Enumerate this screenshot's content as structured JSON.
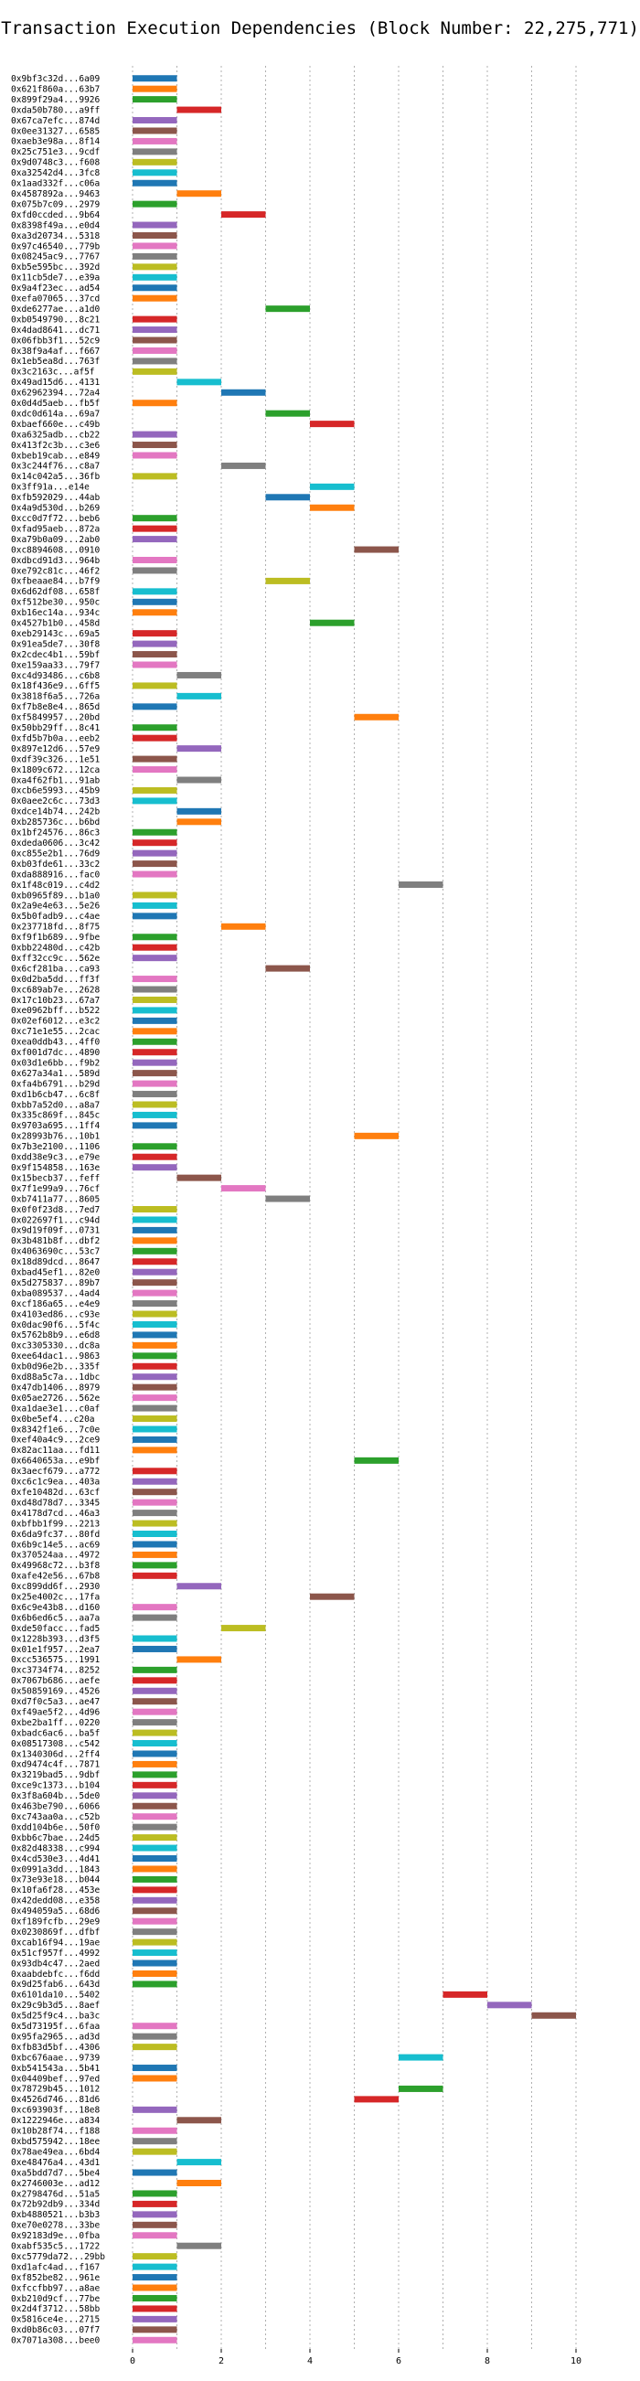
{
  "chart_data": {
    "type": "bar",
    "orientation": "horizontal",
    "title": "Transaction Execution Dependencies (Block Number: 22,275,771)",
    "xlabel": "",
    "ylabel": "",
    "xlim": [
      -0.9,
      10.5
    ],
    "xticks": [
      0,
      2,
      4,
      6,
      8,
      10
    ],
    "grid": true,
    "palette": [
      "#1f77b4",
      "#ff7f0e",
      "#2ca02c",
      "#d62728",
      "#9467bd",
      "#8c564b",
      "#e377c2",
      "#7f7f7f",
      "#bcbd22",
      "#17becf"
    ],
    "transactions": [
      {
        "tx": "0x9bf3c32d...6a09",
        "start": 0
      },
      {
        "tx": "0x621f860a...63b7",
        "start": 0
      },
      {
        "tx": "0x899f29a4...9926",
        "start": 0
      },
      {
        "tx": "0xda50b780...a9ff",
        "start": 1
      },
      {
        "tx": "0x67ca7efc...874d",
        "start": 0
      },
      {
        "tx": "0x0ee31327...6585",
        "start": 0
      },
      {
        "tx": "0xaeb3e98a...8f14",
        "start": 0
      },
      {
        "tx": "0x25c751e3...9cdf",
        "start": 0
      },
      {
        "tx": "0x9d0748c3...f608",
        "start": 0
      },
      {
        "tx": "0xa32542d4...3fc8",
        "start": 0
      },
      {
        "tx": "0x1aad332f...c06a",
        "start": 0
      },
      {
        "tx": "0x4587892a...9463",
        "start": 1
      },
      {
        "tx": "0x075b7c09...2979",
        "start": 0
      },
      {
        "tx": "0xfd0ccded...9b64",
        "start": 2
      },
      {
        "tx": "0x8398f49a...e0d4",
        "start": 0
      },
      {
        "tx": "0xa3d20734...5318",
        "start": 0
      },
      {
        "tx": "0x97c46540...779b",
        "start": 0
      },
      {
        "tx": "0x08245ac9...7767",
        "start": 0
      },
      {
        "tx": "0xb5e595bc...392d",
        "start": 0
      },
      {
        "tx": "0x11cb5de7...e39a",
        "start": 0
      },
      {
        "tx": "0x9a4f23ec...ad54",
        "start": 0
      },
      {
        "tx": "0xefa07065...37cd",
        "start": 0
      },
      {
        "tx": "0xde6277ae...a1d0",
        "start": 3
      },
      {
        "tx": "0xb0549790...8c21",
        "start": 0
      },
      {
        "tx": "0x4dad8641...dc71",
        "start": 0
      },
      {
        "tx": "0x06fbb3f1...52c9",
        "start": 0
      },
      {
        "tx": "0x38f9a4af...f667",
        "start": 0
      },
      {
        "tx": "0x1eb5ea8d...763f",
        "start": 0
      },
      {
        "tx": "0x3c2163c...af5f",
        "start": 0
      },
      {
        "tx": "0x49ad15d6...4131",
        "start": 1
      },
      {
        "tx": "0x62962394...72a4",
        "start": 2
      },
      {
        "tx": "0x0d4d5aeb...fb5f",
        "start": 0
      },
      {
        "tx": "0xdc0d614a...69a7",
        "start": 3
      },
      {
        "tx": "0xbaef660e...c49b",
        "start": 4
      },
      {
        "tx": "0xa6325adb...cb22",
        "start": 0
      },
      {
        "tx": "0x413f2c3b...c3e6",
        "start": 0
      },
      {
        "tx": "0xbeb19cab...e849",
        "start": 0
      },
      {
        "tx": "0x3c244f76...c8a7",
        "start": 2
      },
      {
        "tx": "0x14c042a5...36fb",
        "start": 0
      },
      {
        "tx": "0x3ff91a...e14e",
        "start": 4
      },
      {
        "tx": "0xfb592029...44ab",
        "start": 3
      },
      {
        "tx": "0x4a9d530d...b269",
        "start": 4
      },
      {
        "tx": "0xcc0d7f72...beb6",
        "start": 0
      },
      {
        "tx": "0xfad95aeb...872a",
        "start": 0
      },
      {
        "tx": "0xa79b0a09...2ab0",
        "start": 0
      },
      {
        "tx": "0xc8894608...0910",
        "start": 5
      },
      {
        "tx": "0xdbcd91d3...964b",
        "start": 0
      },
      {
        "tx": "0xe792c81c...46f2",
        "start": 0
      },
      {
        "tx": "0xfbeaae84...b7f9",
        "start": 3
      },
      {
        "tx": "0x6d62df08...658f",
        "start": 0
      },
      {
        "tx": "0xf512be30...950c",
        "start": 0
      },
      {
        "tx": "0xb16ec14a...934c",
        "start": 0
      },
      {
        "tx": "0x4527b1b0...458d",
        "start": 4
      },
      {
        "tx": "0xeb29143c...69a5",
        "start": 0
      },
      {
        "tx": "0x91ea5de7...30f8",
        "start": 0
      },
      {
        "tx": "0x2cdec4b1...59bf",
        "start": 0
      },
      {
        "tx": "0xe159aa33...79f7",
        "start": 0
      },
      {
        "tx": "0xc4d93486...c6b8",
        "start": 1
      },
      {
        "tx": "0x18f436e9...6ff5",
        "start": 0
      },
      {
        "tx": "0x3818f6a5...726a",
        "start": 1
      },
      {
        "tx": "0xf7b8e8e4...865d",
        "start": 0
      },
      {
        "tx": "0xf5849957...20bd",
        "start": 5
      },
      {
        "tx": "0x50bb29ff...8c41",
        "start": 0
      },
      {
        "tx": "0xfd5b7b0a...eeb2",
        "start": 0
      },
      {
        "tx": "0x897e12d6...57e9",
        "start": 1
      },
      {
        "tx": "0xdf39c326...1e51",
        "start": 0
      },
      {
        "tx": "0x1809c672...12ca",
        "start": 0
      },
      {
        "tx": "0xa4f62fb1...91ab",
        "start": 1
      },
      {
        "tx": "0xcb6e5993...45b9",
        "start": 0
      },
      {
        "tx": "0x0aee2c6c...73d3",
        "start": 0
      },
      {
        "tx": "0xdce14b74...242b",
        "start": 1
      },
      {
        "tx": "0xb285736c...b6bd",
        "start": 1
      },
      {
        "tx": "0x1bf24576...86c3",
        "start": 0
      },
      {
        "tx": "0xdeda0606...3c42",
        "start": 0
      },
      {
        "tx": "0xc855e2b1...76d9",
        "start": 0
      },
      {
        "tx": "0xb03fde61...33c2",
        "start": 0
      },
      {
        "tx": "0xda888916...fac0",
        "start": 0
      },
      {
        "tx": "0x1f48c019...c4d2",
        "start": 6
      },
      {
        "tx": "0xb0965f89...b1a0",
        "start": 0
      },
      {
        "tx": "0x2a9e4e63...5e26",
        "start": 0
      },
      {
        "tx": "0x5b0fadb9...c4ae",
        "start": 0
      },
      {
        "tx": "0x237718fd...8f75",
        "start": 2
      },
      {
        "tx": "0xf9f1b689...9fbe",
        "start": 0
      },
      {
        "tx": "0xbb22480d...c42b",
        "start": 0
      },
      {
        "tx": "0xff32cc9c...562e",
        "start": 0
      },
      {
        "tx": "0x6cf281ba...ca93",
        "start": 3
      },
      {
        "tx": "0x0d2ba5dd...ff3f",
        "start": 0
      },
      {
        "tx": "0xc689ab7e...2628",
        "start": 0
      },
      {
        "tx": "0x17c10b23...67a7",
        "start": 0
      },
      {
        "tx": "0xe0962bff...b522",
        "start": 0
      },
      {
        "tx": "0x02ef6012...e3c2",
        "start": 0
      },
      {
        "tx": "0xc71e1e55...2cac",
        "start": 0
      },
      {
        "tx": "0xea0ddb43...4ff0",
        "start": 0
      },
      {
        "tx": "0xf001d7dc...4890",
        "start": 0
      },
      {
        "tx": "0x03d1e6bb...f9b2",
        "start": 0
      },
      {
        "tx": "0x627a34a1...589d",
        "start": 0
      },
      {
        "tx": "0xfa4b6791...b29d",
        "start": 0
      },
      {
        "tx": "0xd1b6cb47...6c8f",
        "start": 0
      },
      {
        "tx": "0xbb7a52d0...a8a7",
        "start": 0
      },
      {
        "tx": "0x335c869f...845c",
        "start": 0
      },
      {
        "tx": "0x9703a695...1ff4",
        "start": 0
      },
      {
        "tx": "0x28993b76...10b1",
        "start": 5
      },
      {
        "tx": "0x7b3e2100...1106",
        "start": 0
      },
      {
        "tx": "0xdd38e9c3...e79e",
        "start": 0
      },
      {
        "tx": "0x9f154858...163e",
        "start": 0
      },
      {
        "tx": "0x15becb37...feff",
        "start": 1
      },
      {
        "tx": "0x7f1e99a9...76cf",
        "start": 2
      },
      {
        "tx": "0xb7411a77...8605",
        "start": 3
      },
      {
        "tx": "0x0f0f23d8...7ed7",
        "start": 0
      },
      {
        "tx": "0x022697f1...c94d",
        "start": 0
      },
      {
        "tx": "0x9d19f09f...0731",
        "start": 0
      },
      {
        "tx": "0x3b481b8f...dbf2",
        "start": 0
      },
      {
        "tx": "0x4063690c...53c7",
        "start": 0
      },
      {
        "tx": "0x18d89dcd...8647",
        "start": 0
      },
      {
        "tx": "0xbad45ef1...82e0",
        "start": 0
      },
      {
        "tx": "0x5d275837...89b7",
        "start": 0
      },
      {
        "tx": "0xba089537...4ad4",
        "start": 0
      },
      {
        "tx": "0xcf186a65...e4e9",
        "start": 0
      },
      {
        "tx": "0x4103ed86...c93e",
        "start": 0
      },
      {
        "tx": "0x0dac90f6...5f4c",
        "start": 0
      },
      {
        "tx": "0x5762b8b9...e6d8",
        "start": 0
      },
      {
        "tx": "0xc3305330...dc8a",
        "start": 0
      },
      {
        "tx": "0xee64dac1...9863",
        "start": 0
      },
      {
        "tx": "0xb0d96e2b...335f",
        "start": 0
      },
      {
        "tx": "0xd88a5c7a...1dbc",
        "start": 0
      },
      {
        "tx": "0x47db1406...8979",
        "start": 0
      },
      {
        "tx": "0x05ae2726...562e",
        "start": 0
      },
      {
        "tx": "0xa1dae3e1...c0af",
        "start": 0
      },
      {
        "tx": "0x0be5ef4...c20a",
        "start": 0
      },
      {
        "tx": "0x8342f1e6...7c0e",
        "start": 0
      },
      {
        "tx": "0xef40a4c9...2ce9",
        "start": 0
      },
      {
        "tx": "0x82ac11aa...fd11",
        "start": 0
      },
      {
        "tx": "0x6640653a...e9bf",
        "start": 5
      },
      {
        "tx": "0x3aecf679...a772",
        "start": 0
      },
      {
        "tx": "0xc6c1c9ea...403a",
        "start": 0
      },
      {
        "tx": "0xfe10482d...63cf",
        "start": 0
      },
      {
        "tx": "0xd48d78d7...3345",
        "start": 0
      },
      {
        "tx": "0x4178d7cd...46a3",
        "start": 0
      },
      {
        "tx": "0xbfbb1f99...2213",
        "start": 0
      },
      {
        "tx": "0x6da9fc37...80fd",
        "start": 0
      },
      {
        "tx": "0x6b9c14e5...ac69",
        "start": 0
      },
      {
        "tx": "0x370524aa...4972",
        "start": 0
      },
      {
        "tx": "0x49968c72...b3f8",
        "start": 0
      },
      {
        "tx": "0xafe42e56...67b8",
        "start": 0
      },
      {
        "tx": "0xc899dd6f...2930",
        "start": 1
      },
      {
        "tx": "0x25e4002c...17fa",
        "start": 4
      },
      {
        "tx": "0x6c9e43b8...d160",
        "start": 0
      },
      {
        "tx": "0x6b6ed6c5...aa7a",
        "start": 0
      },
      {
        "tx": "0xde50facc...fad5",
        "start": 2
      },
      {
        "tx": "0x1228b393...d3f5",
        "start": 0
      },
      {
        "tx": "0x01e1f957...2ea7",
        "start": 0
      },
      {
        "tx": "0xcc536575...1991",
        "start": 1
      },
      {
        "tx": "0xc3734f74...8252",
        "start": 0
      },
      {
        "tx": "0x7067b686...aefe",
        "start": 0
      },
      {
        "tx": "0x50859169...4526",
        "start": 0
      },
      {
        "tx": "0xd7f0c5a3...ae47",
        "start": 0
      },
      {
        "tx": "0xf49ae5f2...4d96",
        "start": 0
      },
      {
        "tx": "0xbe2ba1ff...0220",
        "start": 0
      },
      {
        "tx": "0xbadc6ac6...ba5f",
        "start": 0
      },
      {
        "tx": "0x08517308...c542",
        "start": 0
      },
      {
        "tx": "0x1340306d...2ff4",
        "start": 0
      },
      {
        "tx": "0xd9474c4f...7871",
        "start": 0
      },
      {
        "tx": "0x3219bad5...9dbf",
        "start": 0
      },
      {
        "tx": "0xce9c1373...b104",
        "start": 0
      },
      {
        "tx": "0x3f8a604b...5de0",
        "start": 0
      },
      {
        "tx": "0x463be790...6066",
        "start": 0
      },
      {
        "tx": "0xc743aa0a...c52b",
        "start": 0
      },
      {
        "tx": "0xdd104b6e...50f0",
        "start": 0
      },
      {
        "tx": "0xbb6c7bae...24d5",
        "start": 0
      },
      {
        "tx": "0x82d48338...c994",
        "start": 0
      },
      {
        "tx": "0x4cd530e3...4d41",
        "start": 0
      },
      {
        "tx": "0x0991a3dd...1843",
        "start": 0
      },
      {
        "tx": "0x73e93e18...b044",
        "start": 0
      },
      {
        "tx": "0x10fa6f28...453e",
        "start": 0
      },
      {
        "tx": "0x42dedd08...e358",
        "start": 0
      },
      {
        "tx": "0x494059a5...68d6",
        "start": 0
      },
      {
        "tx": "0xf189fcfb...29e9",
        "start": 0
      },
      {
        "tx": "0x0230869f...dfbf",
        "start": 0
      },
      {
        "tx": "0xcab16f94...19ae",
        "start": 0
      },
      {
        "tx": "0x51cf957f...4992",
        "start": 0
      },
      {
        "tx": "0x93db4c47...2aed",
        "start": 0
      },
      {
        "tx": "0xaabdebfc...f6dd",
        "start": 0
      },
      {
        "tx": "0x9d25fab6...643d",
        "start": 0
      },
      {
        "tx": "0x6101da10...5402",
        "start": 7
      },
      {
        "tx": "0x29c9b3d5...8aef",
        "start": 8
      },
      {
        "tx": "0x5d25f9c4...ba3c",
        "start": 9
      },
      {
        "tx": "0x5d73195f...6faa",
        "start": 0
      },
      {
        "tx": "0x95fa2965...ad3d",
        "start": 0
      },
      {
        "tx": "0xfb83d5bf...4306",
        "start": 0
      },
      {
        "tx": "0xbc676aae...9739",
        "start": 6
      },
      {
        "tx": "0xb541543a...5b41",
        "start": 0
      },
      {
        "tx": "0x04409bef...97ed",
        "start": 0
      },
      {
        "tx": "0x78729b45...1012",
        "start": 6
      },
      {
        "tx": "0x4526d746...81d6",
        "start": 5
      },
      {
        "tx": "0xc693903f...18e8",
        "start": 0
      },
      {
        "tx": "0x1222946e...a834",
        "start": 1
      },
      {
        "tx": "0x10b28f74...f188",
        "start": 0
      },
      {
        "tx": "0xbd575942...18ee",
        "start": 0
      },
      {
        "tx": "0x78ae49ea...6bd4",
        "start": 0
      },
      {
        "tx": "0xe48476a4...43d1",
        "start": 1
      },
      {
        "tx": "0xa5bdd7d7...5be4",
        "start": 0
      },
      {
        "tx": "0x2746003e...ad12",
        "start": 1
      },
      {
        "tx": "0x2798476d...51a5",
        "start": 0
      },
      {
        "tx": "0x72b92db9...334d",
        "start": 0
      },
      {
        "tx": "0xb4880521...b3b3",
        "start": 0
      },
      {
        "tx": "0xe70e0278...33be",
        "start": 0
      },
      {
        "tx": "0x92183d9e...0fba",
        "start": 0
      },
      {
        "tx": "0xabf535c5...1722",
        "start": 1
      },
      {
        "tx": "0xc5779da72...29bb",
        "start": 0
      },
      {
        "tx": "0xd1afc4ad...f167",
        "start": 0
      },
      {
        "tx": "0xf852be82...961e",
        "start": 0
      },
      {
        "tx": "0xfccfbb97...a8ae",
        "start": 0
      },
      {
        "tx": "0xb210d9cf...77be",
        "start": 0
      },
      {
        "tx": "0x2d4f3712...58bb",
        "start": 0
      },
      {
        "tx": "0x5816ce4e...2715",
        "start": 0
      },
      {
        "tx": "0xd0b86c03...07f7",
        "start": 0
      },
      {
        "tx": "0x7071a308...bee0",
        "start": 0
      }
    ]
  }
}
